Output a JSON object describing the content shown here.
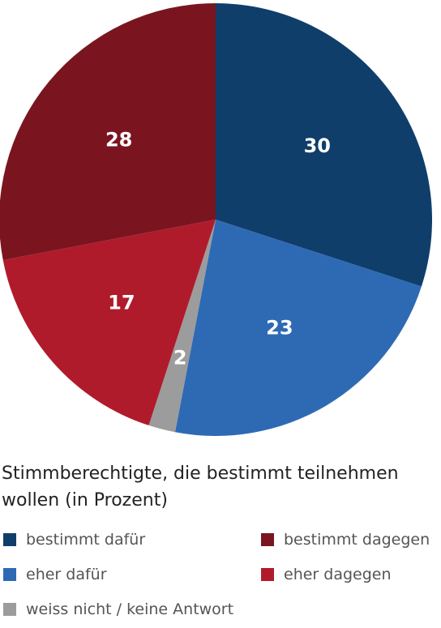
{
  "caption": "Stimmberechtigte, die bestimmt teilnehmen wollen (in Prozent)",
  "chart_data": {
    "type": "pie",
    "start_angle_deg": 0,
    "direction": "clockwise",
    "slices": [
      {
        "label": "bestimmt dafür",
        "value": 30,
        "value_label": "30",
        "color": "#0f3e6b"
      },
      {
        "label": "eher dafür",
        "value": 23,
        "value_label": "23",
        "color": "#2e6ab4"
      },
      {
        "label": "weiss nicht / keine Antwort",
        "value": 2,
        "value_label": "2",
        "color": "#9c9c9c"
      },
      {
        "label": "eher dagegen",
        "value": 17,
        "value_label": "17",
        "color": "#b01b2c"
      },
      {
        "label": "bestimmt dagegen",
        "value": 28,
        "value_label": "28",
        "color": "#7a1520"
      }
    ]
  },
  "legend": {
    "items": [
      {
        "label": "bestimmt dafür",
        "color": "#0f3e6b"
      },
      {
        "label": "bestimmt dagegen",
        "color": "#7a1520"
      },
      {
        "label": "eher dafür",
        "color": "#2e6ab4"
      },
      {
        "label": "eher dagegen",
        "color": "#b01b2c"
      },
      {
        "label": "weiss nicht / keine Antwort",
        "color": "#9c9c9c"
      }
    ]
  }
}
